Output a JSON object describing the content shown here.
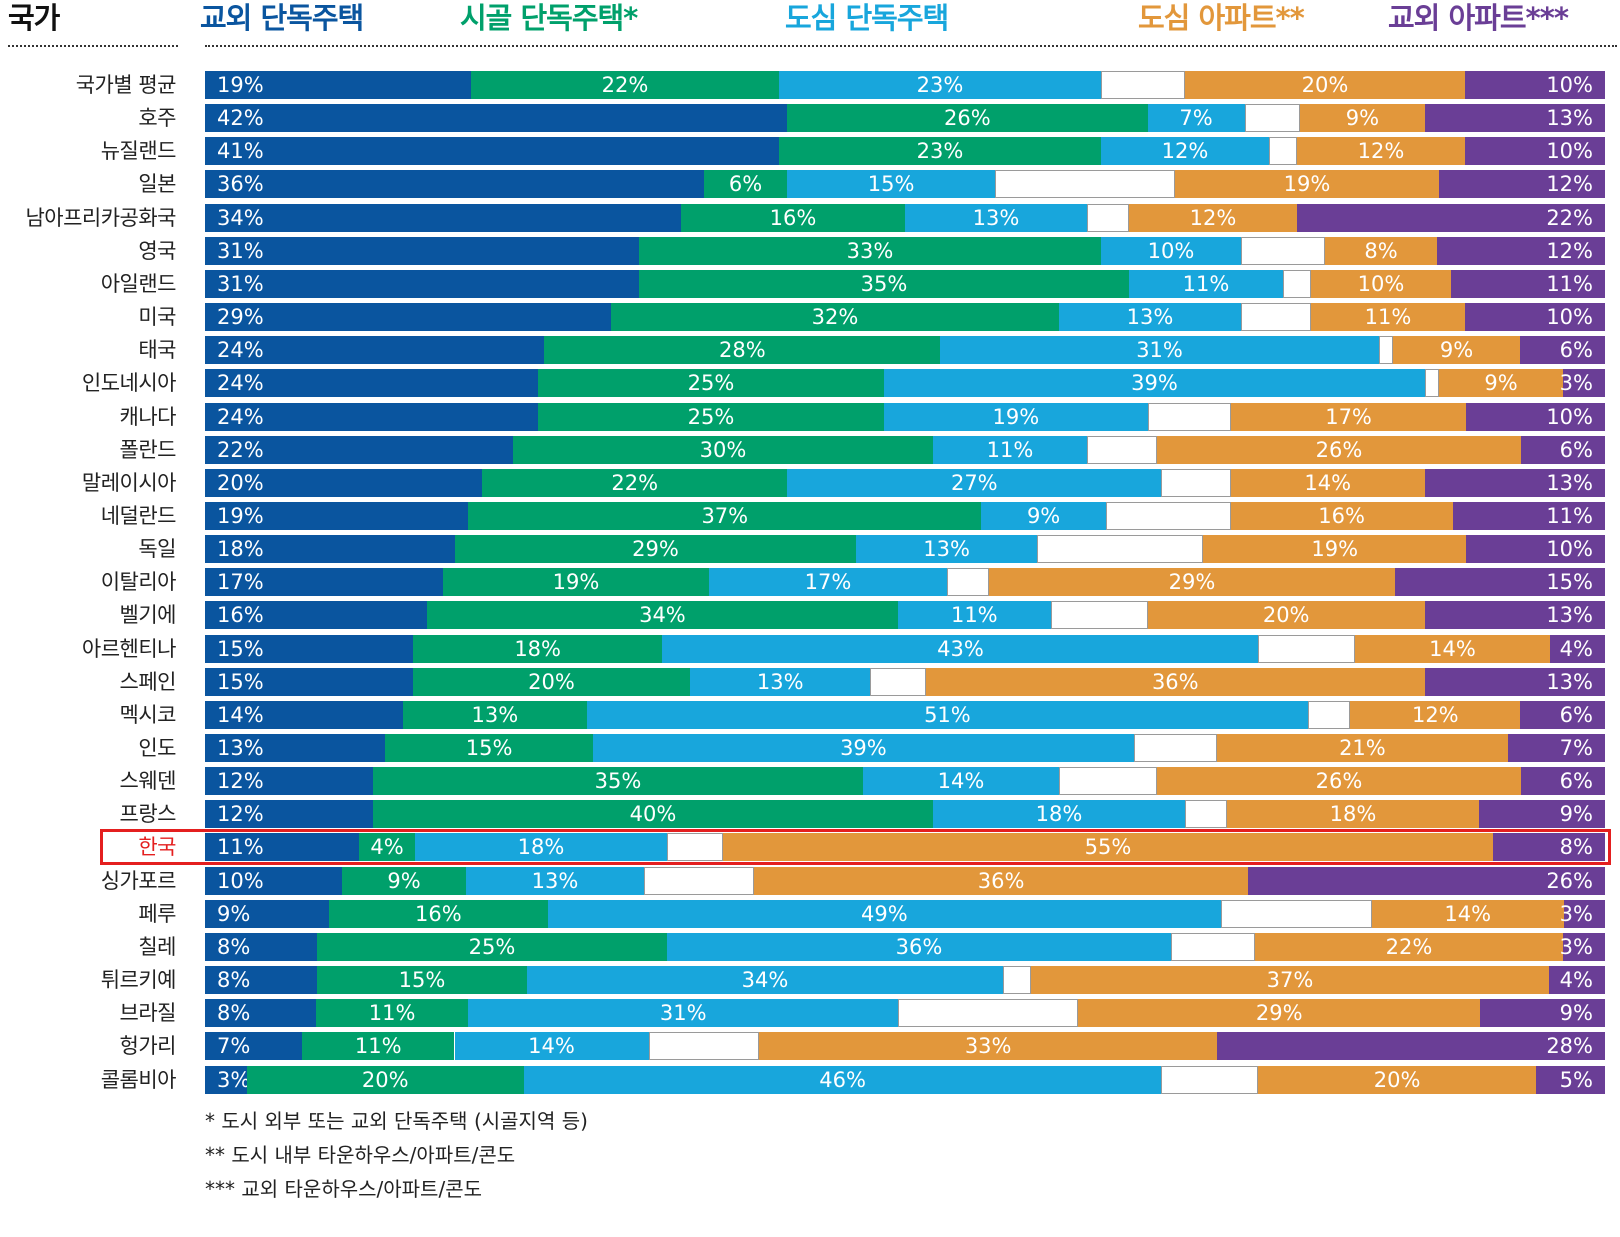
{
  "header": {
    "country": "국가",
    "series_labels": [
      "교외 단독주택",
      "시골 단독주택*",
      "도심 단독주택",
      "도심 아파트**",
      "교외 아파트***"
    ]
  },
  "colors": {
    "suburban_house": "#0a559f",
    "rural_house": "#00a06b",
    "urban_house": "#18a6dc",
    "blank": "#ffffff",
    "urban_apartment": "#e2973b",
    "suburban_apartment": "#6a3e96",
    "highlight": "#e41f1f"
  },
  "chart_data": {
    "type": "bar",
    "orientation": "horizontal-stacked",
    "categories": [
      "국가별 평균",
      "호주",
      "뉴질랜드",
      "일본",
      "남아프리카공화국",
      "영국",
      "아일랜드",
      "미국",
      "태국",
      "인도네시아",
      "캐나다",
      "폴란드",
      "말레이시아",
      "네덜란드",
      "독일",
      "이탈리아",
      "벨기에",
      "아르헨티나",
      "스페인",
      "멕시코",
      "인도",
      "스웨덴",
      "프랑스",
      "한국",
      "싱가포르",
      "페루",
      "칠레",
      "튀르키예",
      "브라질",
      "헝가리",
      "콜롬비아"
    ],
    "highlighted_category": "한국",
    "series": [
      {
        "name": "교외 단독주택",
        "values": [
          19,
          42,
          41,
          36,
          34,
          31,
          31,
          29,
          24,
          24,
          24,
          22,
          20,
          19,
          18,
          17,
          16,
          15,
          15,
          14,
          13,
          12,
          12,
          11,
          10,
          9,
          8,
          8,
          8,
          7,
          3
        ]
      },
      {
        "name": "시골 단독주택*",
        "values": [
          22,
          26,
          23,
          6,
          16,
          33,
          35,
          32,
          28,
          25,
          25,
          30,
          22,
          37,
          29,
          19,
          34,
          18,
          20,
          13,
          15,
          35,
          40,
          4,
          9,
          16,
          25,
          15,
          11,
          11,
          20
        ]
      },
      {
        "name": "도심 단독주택",
        "values": [
          23,
          7,
          12,
          15,
          13,
          10,
          11,
          13,
          31,
          39,
          19,
          11,
          27,
          9,
          13,
          17,
          11,
          43,
          13,
          51,
          39,
          14,
          18,
          18,
          13,
          49,
          36,
          34,
          31,
          14,
          46
        ]
      },
      {
        "name": "",
        "values": [
          6,
          4,
          2,
          13,
          3,
          6,
          2,
          5,
          1,
          1,
          6,
          5,
          5,
          9,
          12,
          3,
          7,
          7,
          4,
          3,
          6,
          7,
          3,
          4,
          8,
          11,
          6,
          2,
          13,
          8,
          7
        ]
      },
      {
        "name": "도심 아파트**",
        "values": [
          20,
          9,
          12,
          19,
          12,
          8,
          10,
          11,
          9,
          9,
          17,
          26,
          14,
          16,
          19,
          29,
          20,
          14,
          36,
          12,
          21,
          26,
          18,
          55,
          36,
          14,
          22,
          37,
          29,
          33,
          20
        ]
      },
      {
        "name": "교외 아파트***",
        "values": [
          10,
          13,
          10,
          12,
          22,
          12,
          11,
          10,
          6,
          3,
          10,
          6,
          13,
          11,
          10,
          15,
          13,
          4,
          13,
          6,
          7,
          6,
          9,
          8,
          26,
          3,
          3,
          4,
          9,
          28,
          5
        ]
      }
    ]
  },
  "footnotes": [
    "* 도시 외부 또는 교외 단독주택 (시골지역 등)",
    "** 도시 내부 타운하우스/아파트/콘도",
    "*** 교외 타운하우스/아파트/콘도"
  ]
}
